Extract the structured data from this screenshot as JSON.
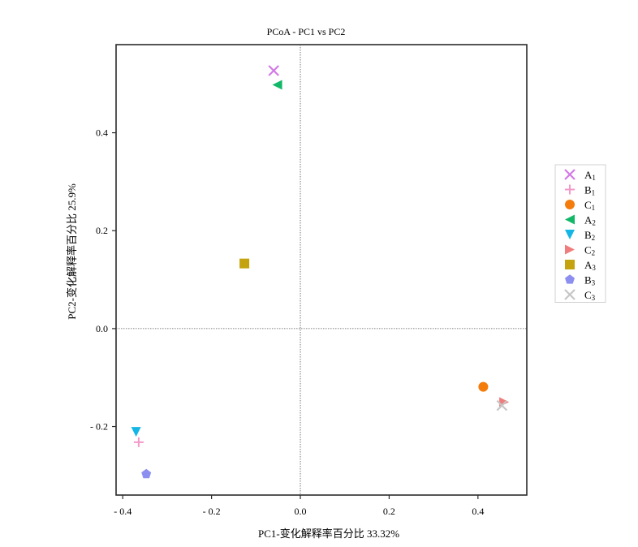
{
  "chart_data": {
    "type": "scatter",
    "title": "PCoA - PC1 vs PC2",
    "xlabel": "PC1-变化解释率百分比  33.32%",
    "ylabel": "PC2-变化解释率百分比  25.9%",
    "xlim": [
      -0.415,
      0.51
    ],
    "ylim": [
      -0.34,
      0.58
    ],
    "xticks": [
      -0.4,
      -0.2,
      0.0,
      0.2,
      0.4
    ],
    "xtick_labels": [
      "- 0.4",
      "- 0.2",
      "0.0",
      "0.2",
      "0.4"
    ],
    "yticks": [
      -0.2,
      0.0,
      0.2,
      0.4
    ],
    "ytick_labels": [
      "- 0.2",
      "0.0",
      "0.2",
      "0.4"
    ],
    "reference_lines": {
      "x": 0,
      "y": 0,
      "style": "dotted"
    },
    "legend_position": "right",
    "series": [
      {
        "name": "A",
        "sub": "1",
        "marker": "x",
        "color": "#d27ae6",
        "points": [
          [
            -0.06,
            0.527
          ]
        ]
      },
      {
        "name": "B",
        "sub": "1",
        "marker": "plus",
        "color": "#f39ac8",
        "points": [
          [
            -0.364,
            -0.232
          ]
        ]
      },
      {
        "name": "C",
        "sub": "1",
        "marker": "circle",
        "color": "#f47c0c",
        "points": [
          [
            0.412,
            -0.119
          ]
        ]
      },
      {
        "name": "A",
        "sub": "2",
        "marker": "triangle-left",
        "color": "#12b867",
        "points": [
          [
            -0.052,
            0.498
          ]
        ]
      },
      {
        "name": "B",
        "sub": "2",
        "marker": "triangle-down",
        "color": "#13b6e4",
        "points": [
          [
            -0.37,
            -0.211
          ]
        ]
      },
      {
        "name": "C",
        "sub": "2",
        "marker": "triangle-right",
        "color": "#f07c7c",
        "points": [
          [
            0.459,
            -0.15
          ]
        ]
      },
      {
        "name": "A",
        "sub": "3",
        "marker": "square",
        "color": "#c4a30e",
        "points": [
          [
            -0.126,
            0.133
          ]
        ]
      },
      {
        "name": "B",
        "sub": "3",
        "marker": "pentagon",
        "color": "#8c8ef0",
        "points": [
          [
            -0.347,
            -0.297
          ]
        ]
      },
      {
        "name": "C",
        "sub": "3",
        "marker": "x",
        "color": "#c6c6c6",
        "points": [
          [
            0.454,
            -0.157
          ]
        ]
      }
    ]
  }
}
